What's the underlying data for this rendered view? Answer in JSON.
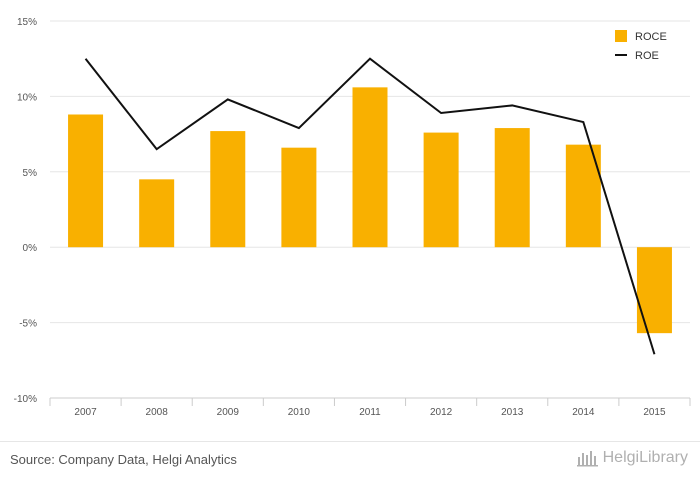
{
  "chart_data": {
    "type": "bar",
    "categories": [
      "2007",
      "2008",
      "2009",
      "2010",
      "2011",
      "2012",
      "2013",
      "2014",
      "2015"
    ],
    "series": [
      {
        "name": "ROCE",
        "kind": "bar",
        "color": "#F9B000",
        "values": [
          8.8,
          4.5,
          7.7,
          6.6,
          10.6,
          7.6,
          7.9,
          6.8,
          -5.7
        ]
      },
      {
        "name": "ROE",
        "kind": "line",
        "color": "#111111",
        "values": [
          12.5,
          6.5,
          9.8,
          7.9,
          12.5,
          8.9,
          9.4,
          8.3,
          -7.1
        ]
      }
    ],
    "ylim": [
      -10,
      15
    ],
    "yticks": [
      -10,
      -5,
      0,
      5,
      10,
      15
    ],
    "ytick_labels": [
      "-10%",
      "-5%",
      "0%",
      "5%",
      "10%",
      "15%"
    ],
    "grid": true,
    "legend_position": "top-right"
  },
  "footer": {
    "source": "Source: Company Data, Helgi Analytics",
    "brand": "HelgiLibrary"
  }
}
